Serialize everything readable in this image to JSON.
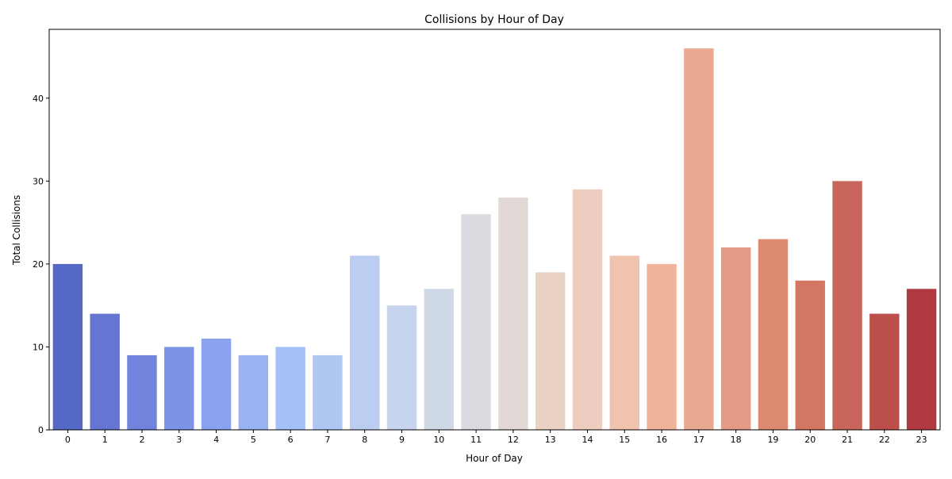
{
  "chart_data": {
    "type": "bar",
    "title": "Collisions by Hour of Day",
    "xlabel": "Hour of Day",
    "ylabel": "Total Collisions",
    "categories": [
      "0",
      "1",
      "2",
      "3",
      "4",
      "5",
      "6",
      "7",
      "8",
      "9",
      "10",
      "11",
      "12",
      "13",
      "14",
      "15",
      "16",
      "17",
      "18",
      "19",
      "20",
      "21",
      "22",
      "23"
    ],
    "values": [
      20,
      14,
      9,
      10,
      11,
      9,
      10,
      9,
      21,
      15,
      17,
      26,
      28,
      19,
      29,
      21,
      20,
      46,
      22,
      23,
      18,
      30,
      14,
      17
    ],
    "ylim": [
      0,
      48.3
    ],
    "yticks": [
      0,
      10,
      20,
      30,
      40
    ],
    "grid": false,
    "legend": "none",
    "colors": [
      "#5468c5",
      "#6475d2",
      "#7183dd",
      "#7d94e6",
      "#8ba2ee",
      "#98b2f2",
      "#a5c0f6",
      "#b0c7f2",
      "#bbcdf0",
      "#c6d4ed",
      "#d0d9e6",
      "#d9dbe0",
      "#e2d9d6",
      "#e9d1c3",
      "#eccdc0",
      "#efc3ae",
      "#efb39a",
      "#e9a990",
      "#e49a84",
      "#dd8a72",
      "#d47664",
      "#c9665b",
      "#bd4f4b",
      "#b13a42"
    ]
  }
}
